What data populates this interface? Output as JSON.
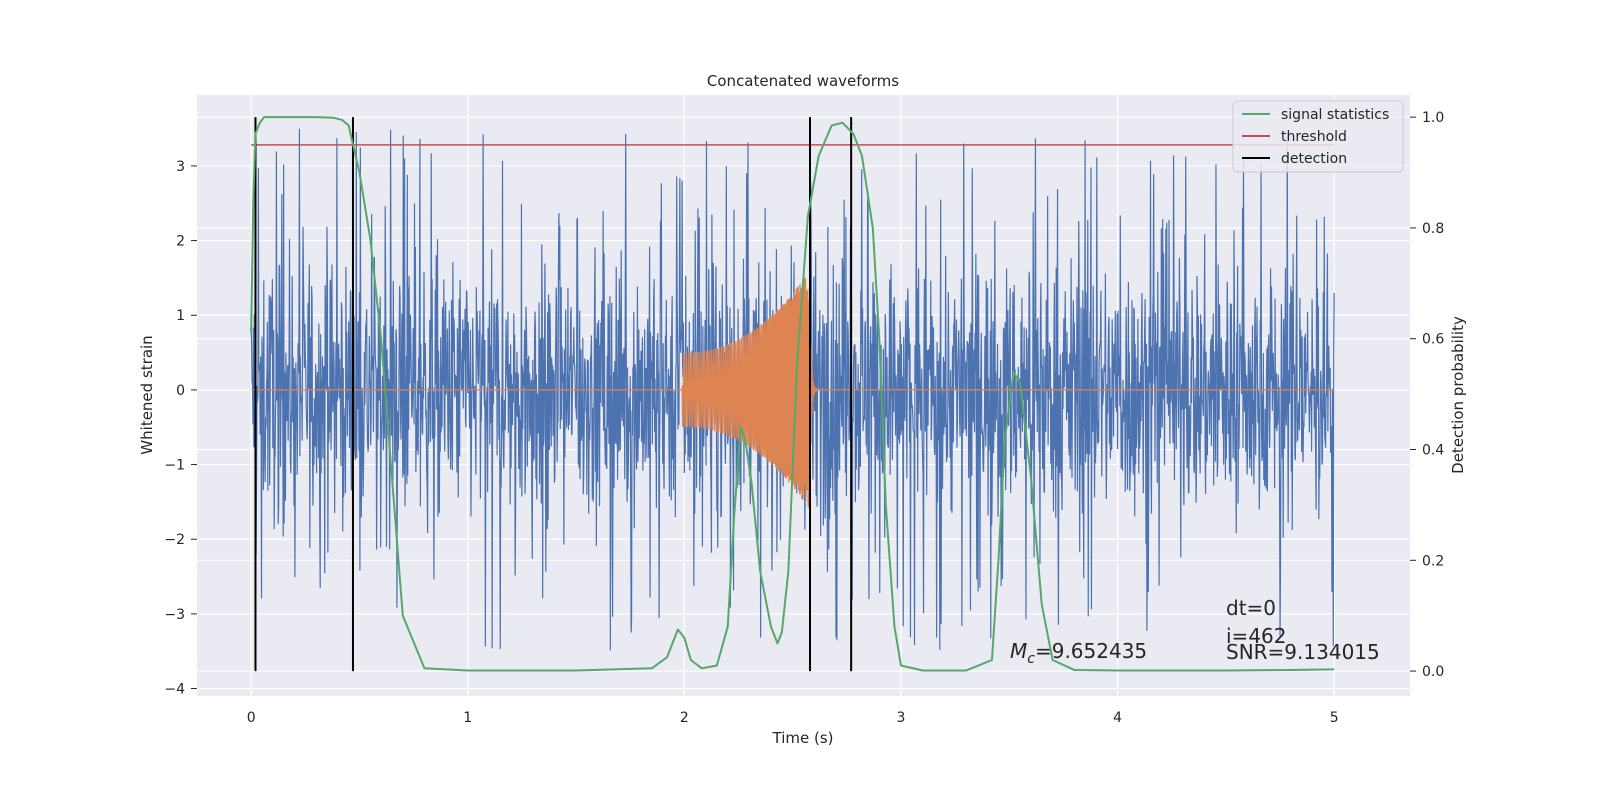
{
  "chart_data": {
    "type": "line",
    "title": "Concatenated waveforms",
    "xlabel": "Time (s)",
    "ylabel_left": "Whitened strain",
    "ylabel_right": "Detection probability",
    "xlim": [
      -0.25,
      5.35
    ],
    "ylim_left": [
      -4.1,
      3.95
    ],
    "ylim_right": [
      -0.045,
      1.04
    ],
    "xticks": [
      0,
      1,
      2,
      3,
      4,
      5
    ],
    "yticks_left": [
      -4,
      -3,
      -2,
      -1,
      0,
      1,
      2,
      3
    ],
    "yticks_right": [
      0.0,
      0.2,
      0.4,
      0.6,
      0.8,
      1.0
    ],
    "grid": true,
    "legend_position": "top-right",
    "colors": {
      "strain": "#4c72b0",
      "template": "#dd8452",
      "signal_statistics": "#55a868",
      "threshold": "#c44e52",
      "detection": "#000000",
      "background": "#eaeaf2"
    },
    "series": [
      {
        "name": "signal statistics",
        "axis": "right",
        "x": [
          0.0,
          0.01,
          0.02,
          0.04,
          0.06,
          0.1,
          0.2,
          0.3,
          0.38,
          0.42,
          0.45,
          0.5,
          0.55,
          0.6,
          0.65,
          0.7,
          0.8,
          1.0,
          1.5,
          1.85,
          1.92,
          1.97,
          2.0,
          2.03,
          2.08,
          2.15,
          2.2,
          2.23,
          2.26,
          2.28,
          2.31,
          2.35,
          2.4,
          2.43,
          2.45,
          2.48,
          2.52,
          2.57,
          2.62,
          2.68,
          2.73,
          2.78,
          2.82,
          2.87,
          2.9,
          2.93,
          2.97,
          3.0,
          3.1,
          3.3,
          3.42,
          3.45,
          3.48,
          3.52,
          3.55,
          3.6,
          3.65,
          3.7,
          3.8,
          4.0,
          4.5,
          4.8,
          5.0
        ],
        "values": [
          0.61,
          0.85,
          0.97,
          0.99,
          1.0,
          1.0,
          1.0,
          1.0,
          0.999,
          0.995,
          0.985,
          0.9,
          0.78,
          0.6,
          0.35,
          0.1,
          0.005,
          0.001,
          0.001,
          0.005,
          0.025,
          0.075,
          0.06,
          0.02,
          0.005,
          0.01,
          0.08,
          0.28,
          0.44,
          0.42,
          0.34,
          0.18,
          0.08,
          0.05,
          0.07,
          0.18,
          0.55,
          0.82,
          0.93,
          0.985,
          0.99,
          0.97,
          0.93,
          0.8,
          0.6,
          0.3,
          0.08,
          0.01,
          0.001,
          0.001,
          0.02,
          0.2,
          0.42,
          0.54,
          0.52,
          0.35,
          0.12,
          0.02,
          0.002,
          0.001,
          0.001,
          0.002,
          0.003
        ]
      },
      {
        "name": "threshold",
        "axis": "right",
        "x": [
          0.0,
          5.0
        ],
        "values": [
          0.95,
          0.95
        ]
      },
      {
        "name": "detection",
        "axis": "right",
        "x": [
          0.02,
          0.47,
          2.58,
          2.77
        ],
        "values": [
          1.0,
          1.0,
          1.0,
          1.0
        ]
      }
    ],
    "background_signals": [
      {
        "axis": "left",
        "x_range": [
          0.0,
          5.0
        ],
        "envelope": [
          -1.5,
          1.5
        ],
        "peak_range": [
          -3.8,
          3.6
        ]
      },
      {
        "axis": "left",
        "chirp_start": 1.99,
        "merger_time": 2.58,
        "amplitude_start": 0.5,
        "amplitude_peak": 1.6,
        "baseline": 0.0
      }
    ],
    "annotations": {
      "mc_label": "M",
      "mc_subscript": "c",
      "mc_value": "=9.652435",
      "dt": "dt=0",
      "i": "i=462",
      "snr": "SNR=9.134015"
    }
  }
}
